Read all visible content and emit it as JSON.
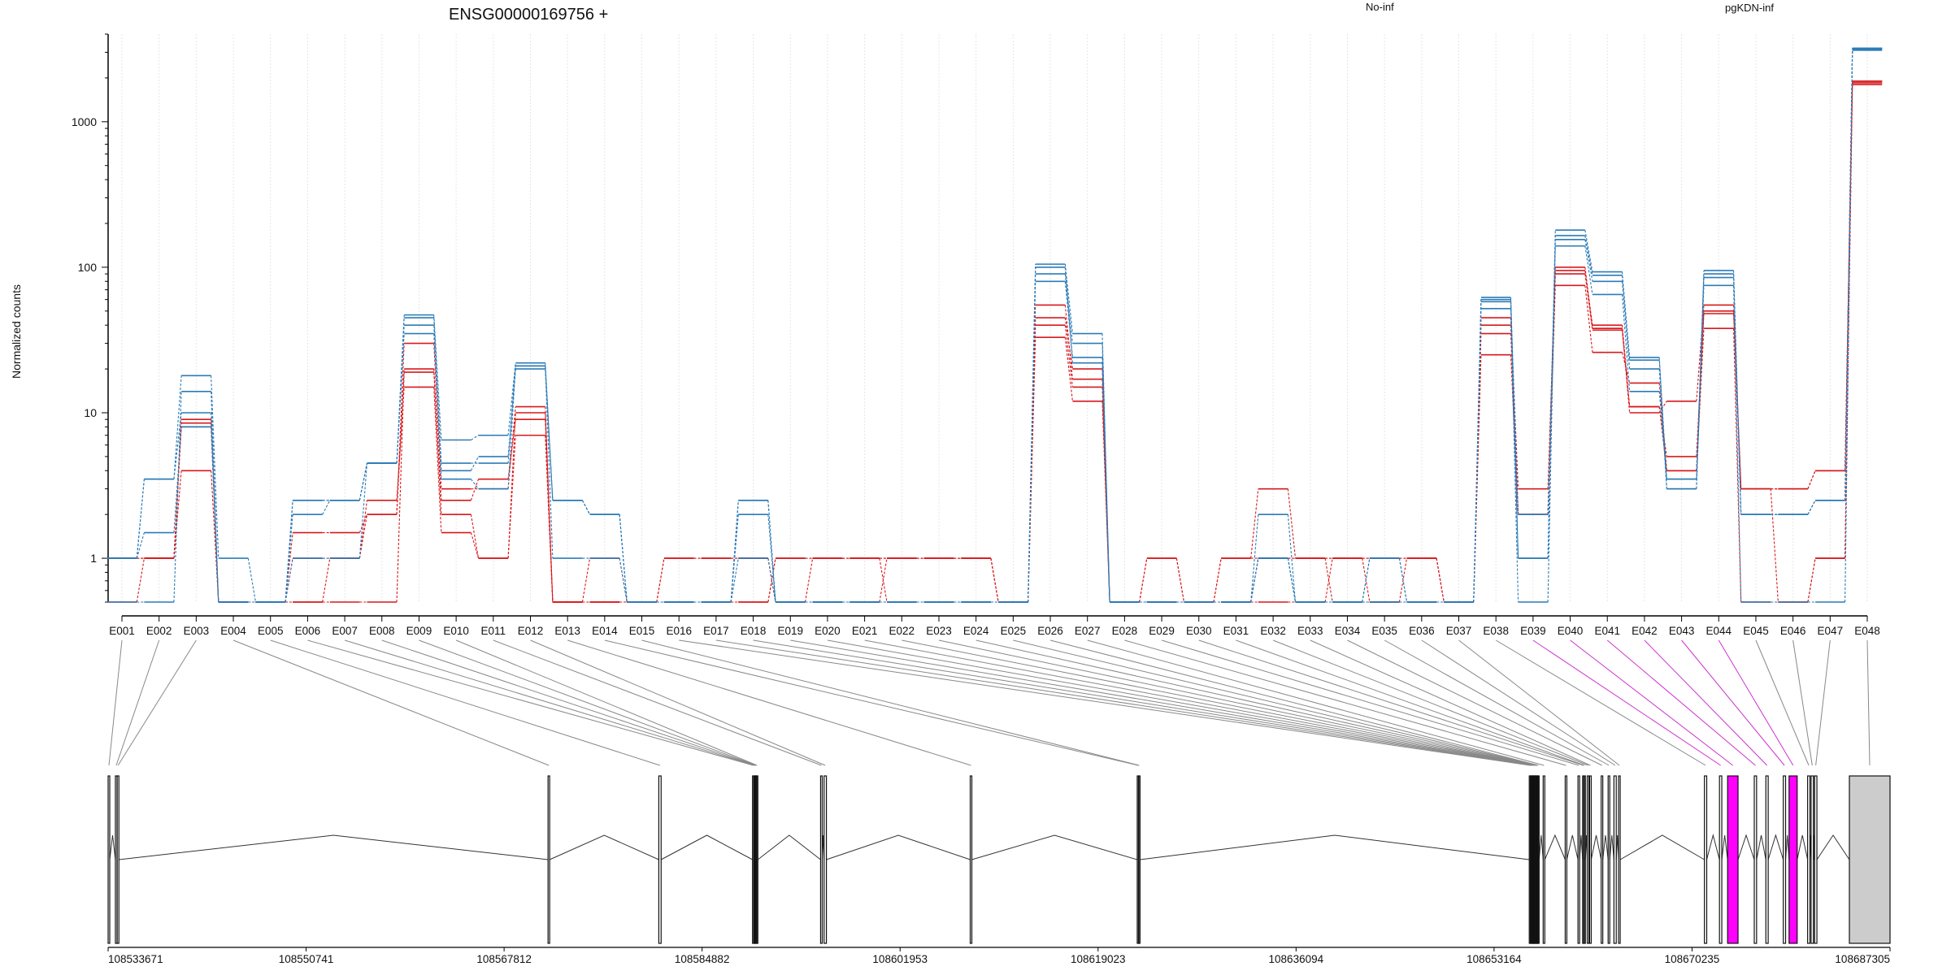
{
  "title": "ENSG00000169756 +",
  "ylabel": "Normalized counts",
  "legend": [
    {
      "label": "No-inf",
      "color": "#d7191c"
    },
    {
      "label": "pgKDN-inf",
      "color": "#2c7bb6"
    }
  ],
  "colors": {
    "highlight": "#ff00ff",
    "gray": "#cccccc",
    "axis": "#000000",
    "connector": "#888888",
    "grid": "#e6e6e6"
  },
  "chart_data": {
    "type": "line",
    "yscale": "log",
    "ylim": [
      0.5,
      4000
    ],
    "yticks": [
      1,
      10,
      100,
      1000
    ],
    "ytick_labels": [
      "1",
      "10",
      "100",
      "1000"
    ],
    "categories": [
      "E001",
      "E002",
      "E003",
      "E004",
      "E005",
      "E006",
      "E007",
      "E008",
      "E009",
      "E010",
      "E011",
      "E012",
      "E013",
      "E014",
      "E015",
      "E016",
      "E017",
      "E018",
      "E019",
      "E020",
      "E021",
      "E022",
      "E023",
      "E024",
      "E025",
      "E026",
      "E027",
      "E028",
      "E029",
      "E030",
      "E031",
      "E032",
      "E033",
      "E034",
      "E035",
      "E036",
      "E037",
      "E038",
      "E039",
      "E040",
      "E041",
      "E042",
      "E043",
      "E044",
      "E045",
      "E046",
      "E047",
      "E048"
    ],
    "series": [
      {
        "group": "No-inf",
        "values": [
          1.0,
          1.0,
          8.0,
          0.5,
          0.5,
          1.0,
          1.0,
          2.0,
          20,
          2.0,
          1.0,
          10,
          0.5,
          1.0,
          0.5,
          1.0,
          1.0,
          1.0,
          0.5,
          1.0,
          1.0,
          1.0,
          1.0,
          1.0,
          0.5,
          40,
          15,
          0.5,
          1.0,
          0.5,
          1.0,
          3.0,
          1.0,
          1.0,
          1.0,
          1.0,
          0.5,
          40,
          2.0,
          95,
          40,
          11,
          5.0,
          50,
          3.0,
          0.5,
          1.0,
          1900
        ]
      },
      {
        "group": "No-inf",
        "values": [
          1.0,
          1.0,
          9.0,
          0.5,
          0.5,
          1.5,
          1.5,
          2.0,
          30,
          3.0,
          3.0,
          11,
          0.5,
          0.5,
          0.5,
          0.5,
          0.5,
          0.5,
          1.0,
          1.0,
          1.0,
          1.0,
          1.0,
          1.0,
          0.5,
          55,
          17,
          0.5,
          0.5,
          0.5,
          0.5,
          1.0,
          1.0,
          0.5,
          0.5,
          0.5,
          0.5,
          45,
          3.0,
          100,
          38,
          10,
          12,
          55,
          3.0,
          3.0,
          4.0,
          1850
        ]
      },
      {
        "group": "No-inf",
        "values": [
          0.5,
          1.0,
          4.0,
          0.5,
          0.5,
          0.5,
          1.0,
          2.5,
          15,
          1.5,
          1.0,
          7.0,
          0.5,
          0.5,
          0.5,
          1.0,
          1.0,
          1.0,
          0.5,
          0.5,
          0.5,
          1.0,
          1.0,
          1.0,
          0.5,
          33,
          12,
          0.5,
          1.0,
          0.5,
          1.0,
          1.0,
          1.0,
          1.0,
          1.0,
          1.0,
          0.5,
          25,
          2.0,
          75,
          26,
          16,
          4.0,
          38,
          0.5,
          0.5,
          1.0,
          1800
        ]
      },
      {
        "group": "No-inf",
        "values": [
          1.0,
          1.0,
          8.5,
          0.5,
          0.5,
          0.5,
          0.5,
          0.5,
          19,
          2.5,
          3.5,
          9.0,
          0.5,
          0.5,
          0.5,
          0.5,
          0.5,
          0.5,
          1.0,
          1.0,
          1.0,
          0.5,
          0.5,
          0.5,
          0.5,
          45,
          20,
          0.5,
          0.5,
          0.5,
          0.5,
          0.5,
          0.5,
          1.0,
          0.5,
          1.0,
          0.5,
          35,
          2.0,
          90,
          37,
          11,
          4.0,
          48,
          3.0,
          3.0,
          4.0,
          1900
        ]
      },
      {
        "group": "pgKDN-inf",
        "values": [
          1.0,
          3.5,
          18,
          1.0,
          0.5,
          2.5,
          2.5,
          4.5,
          47,
          6.5,
          7.0,
          22,
          2.5,
          2.0,
          0.5,
          0.5,
          0.5,
          2.5,
          0.5,
          0.5,
          0.5,
          0.5,
          0.5,
          0.5,
          0.5,
          105,
          35,
          0.5,
          0.5,
          0.5,
          0.5,
          2.0,
          0.5,
          0.5,
          0.5,
          0.5,
          0.5,
          62,
          1.0,
          180,
          93,
          23,
          3.5,
          95,
          2.0,
          2.0,
          2.5,
          3200
        ]
      },
      {
        "group": "pgKDN-inf",
        "values": [
          1.0,
          3.5,
          10,
          0.5,
          0.5,
          2.0,
          2.5,
          4.5,
          45,
          4.5,
          4.5,
          21,
          2.5,
          2.0,
          0.5,
          0.5,
          0.5,
          2.0,
          0.5,
          0.5,
          0.5,
          0.5,
          0.5,
          0.5,
          0.5,
          90,
          30,
          0.5,
          0.5,
          0.5,
          0.5,
          1.0,
          0.5,
          0.5,
          1.0,
          0.5,
          0.5,
          60,
          1.0,
          165,
          88,
          24,
          3.0,
          90,
          2.0,
          2.0,
          2.5,
          3150
        ]
      },
      {
        "group": "pgKDN-inf",
        "values": [
          0.5,
          0.5,
          14,
          0.5,
          0.5,
          1.0,
          1.0,
          4.5,
          40,
          3.5,
          3.0,
          21,
          1.0,
          1.0,
          0.5,
          0.5,
          0.5,
          1.0,
          0.5,
          0.5,
          0.5,
          0.5,
          0.5,
          0.5,
          0.5,
          80,
          24,
          0.5,
          0.5,
          0.5,
          0.5,
          1.0,
          0.5,
          0.5,
          1.0,
          0.5,
          0.5,
          52,
          0.5,
          155,
          80,
          20,
          3.0,
          75,
          0.5,
          0.5,
          0.5,
          3100
        ]
      },
      {
        "group": "pgKDN-inf",
        "values": [
          1.0,
          1.5,
          8.0,
          0.5,
          0.5,
          2.5,
          2.5,
          4.5,
          35,
          4.0,
          5.0,
          20,
          2.5,
          2.0,
          0.5,
          0.5,
          0.5,
          2.5,
          0.5,
          0.5,
          0.5,
          0.5,
          0.5,
          0.5,
          0.5,
          100,
          22,
          0.5,
          0.5,
          0.5,
          0.5,
          1.0,
          0.5,
          0.5,
          0.5,
          0.5,
          0.5,
          58,
          2.0,
          140,
          65,
          14,
          3.5,
          85,
          2.0,
          2.0,
          2.5,
          3200
        ]
      }
    ],
    "genomic_ticks": [
      "108533671",
      "108550741",
      "108567812",
      "108584882",
      "108601953",
      "108619023",
      "108636094",
      "108653164",
      "108670235",
      "108687305"
    ],
    "genomic_range": [
      108533671,
      108687305
    ]
  },
  "gene_model": {
    "exons": [
      {
        "id": "E001",
        "start": 108533671,
        "end": 108533720,
        "fill": "none"
      },
      {
        "id": "E002",
        "start": 108534300,
        "end": 108534400,
        "fill": "none"
      },
      {
        "id": "E003",
        "start": 108534450,
        "end": 108534600,
        "fill": "none"
      },
      {
        "id": "E004",
        "start": 108571600,
        "end": 108571660,
        "fill": "none"
      },
      {
        "id": "E005",
        "start": 108581150,
        "end": 108581350,
        "fill": "none"
      },
      {
        "id": "E006",
        "start": 108589230,
        "end": 108589320,
        "fill": "none"
      },
      {
        "id": "E007",
        "start": 108589330,
        "end": 108589400,
        "fill": "none"
      },
      {
        "id": "E008",
        "start": 108589410,
        "end": 108589460,
        "fill": "none"
      },
      {
        "id": "E009",
        "start": 108589470,
        "end": 108589540,
        "fill": "none"
      },
      {
        "id": "E010",
        "start": 108589550,
        "end": 108589600,
        "fill": "none"
      },
      {
        "id": "E011",
        "start": 108595100,
        "end": 108595200,
        "fill": "none"
      },
      {
        "id": "E012",
        "start": 108595400,
        "end": 108595600,
        "fill": "none"
      },
      {
        "id": "E013",
        "start": 108608000,
        "end": 108608080,
        "fill": "none"
      },
      {
        "id": "E014",
        "start": 108622400,
        "end": 108622460,
        "fill": "none"
      },
      {
        "id": "E015",
        "start": 108622500,
        "end": 108622560,
        "fill": "none"
      },
      {
        "id": "E016",
        "start": 108656200,
        "end": 108656260,
        "fill": "none"
      },
      {
        "id": "E017",
        "start": 108656280,
        "end": 108656330,
        "fill": "none"
      },
      {
        "id": "E018",
        "start": 108656350,
        "end": 108656400,
        "fill": "none"
      },
      {
        "id": "E019",
        "start": 108656420,
        "end": 108656470,
        "fill": "none"
      },
      {
        "id": "E020",
        "start": 108656490,
        "end": 108656540,
        "fill": "none"
      },
      {
        "id": "E021",
        "start": 108656560,
        "end": 108656610,
        "fill": "none"
      },
      {
        "id": "E022",
        "start": 108656630,
        "end": 108656680,
        "fill": "none"
      },
      {
        "id": "E023",
        "start": 108656700,
        "end": 108656750,
        "fill": "none"
      },
      {
        "id": "E024",
        "start": 108656770,
        "end": 108656820,
        "fill": "none"
      },
      {
        "id": "E025",
        "start": 108656840,
        "end": 108656890,
        "fill": "none"
      },
      {
        "id": "E026",
        "start": 108656910,
        "end": 108657000,
        "fill": "none"
      },
      {
        "id": "E027",
        "start": 108657400,
        "end": 108657500,
        "fill": "none"
      },
      {
        "id": "E028",
        "start": 108659300,
        "end": 108659360,
        "fill": "none"
      },
      {
        "id": "E029",
        "start": 108660400,
        "end": 108660460,
        "fill": "none"
      },
      {
        "id": "E030",
        "start": 108660800,
        "end": 108660860,
        "fill": "none"
      },
      {
        "id": "E031",
        "start": 108660900,
        "end": 108660960,
        "fill": "none"
      },
      {
        "id": "E032",
        "start": 108661200,
        "end": 108661260,
        "fill": "none"
      },
      {
        "id": "E033",
        "start": 108661400,
        "end": 108661500,
        "fill": "none"
      },
      {
        "id": "E034",
        "start": 108662400,
        "end": 108662460,
        "fill": "none"
      },
      {
        "id": "E035",
        "start": 108663000,
        "end": 108663060,
        "fill": "none"
      },
      {
        "id": "E036",
        "start": 108663500,
        "end": 108663700,
        "fill": "none"
      },
      {
        "id": "E037",
        "start": 108663900,
        "end": 108664000,
        "fill": "none"
      },
      {
        "id": "E038",
        "start": 108671300,
        "end": 108671500,
        "fill": "none"
      },
      {
        "id": "E039",
        "start": 108672600,
        "end": 108672800,
        "fill": "none"
      },
      {
        "id": "E040",
        "start": 108673300,
        "end": 108674200,
        "fill": "highlight"
      },
      {
        "id": "E041",
        "start": 108675600,
        "end": 108675800,
        "fill": "none"
      },
      {
        "id": "E042",
        "start": 108676600,
        "end": 108676800,
        "fill": "none"
      },
      {
        "id": "E043",
        "start": 108678100,
        "end": 108678300,
        "fill": "none"
      },
      {
        "id": "E044",
        "start": 108678600,
        "end": 108679300,
        "fill": "highlight"
      },
      {
        "id": "E045",
        "start": 108680200,
        "end": 108680400,
        "fill": "none"
      },
      {
        "id": "E046",
        "start": 108680500,
        "end": 108680700,
        "fill": "none"
      },
      {
        "id": "E047",
        "start": 108680800,
        "end": 108681000,
        "fill": "none"
      },
      {
        "id": "E048",
        "start": 108683800,
        "end": 108687305,
        "fill": "gray"
      }
    ],
    "highlighted_connectors": [
      "E039",
      "E040",
      "E041",
      "E042",
      "E043",
      "E044"
    ]
  }
}
